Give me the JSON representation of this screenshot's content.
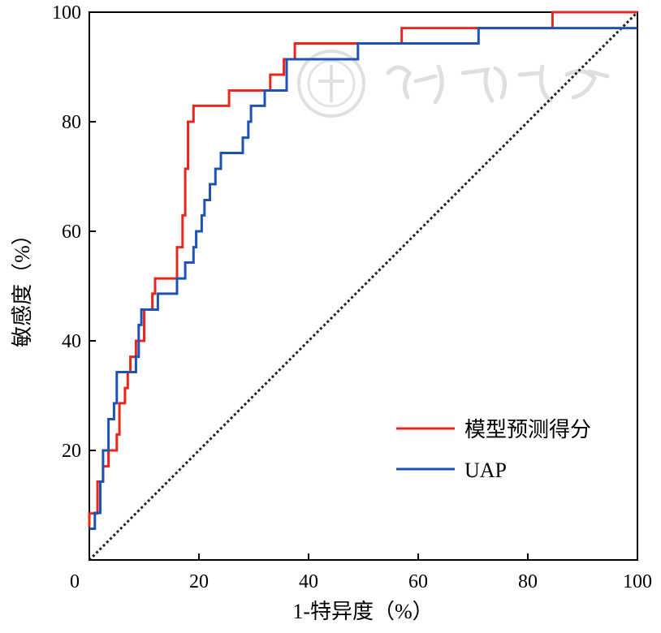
{
  "chart_data": {
    "type": "line",
    "title": "",
    "xlabel": "1-特异度（%）",
    "ylabel": "敏感度（%）",
    "xlim": [
      0,
      100
    ],
    "ylim": [
      0,
      100
    ],
    "x_ticks": [
      0,
      20,
      40,
      60,
      80,
      100
    ],
    "y_ticks": [
      20,
      40,
      60,
      80,
      100
    ],
    "legend_position": "bottom-right",
    "grid": false,
    "diagonal": {
      "name": "reference",
      "style": "dotted",
      "color": "#222222",
      "points": [
        [
          0,
          0
        ],
        [
          100,
          100
        ]
      ]
    },
    "series": [
      {
        "name": "模型预测得分",
        "color": "#e8281e",
        "step": true,
        "points": [
          [
            0,
            6
          ],
          [
            0,
            8.5
          ],
          [
            1.5,
            8.5
          ],
          [
            1.5,
            14.3
          ],
          [
            2.5,
            14.3
          ],
          [
            2.5,
            17.1
          ],
          [
            3.5,
            17.1
          ],
          [
            3.5,
            20
          ],
          [
            5,
            20
          ],
          [
            5,
            22.9
          ],
          [
            5.5,
            22.9
          ],
          [
            5.5,
            28.6
          ],
          [
            6.5,
            28.6
          ],
          [
            6.5,
            31.4
          ],
          [
            7,
            31.4
          ],
          [
            7,
            34.3
          ],
          [
            7.5,
            34.3
          ],
          [
            7.5,
            37.1
          ],
          [
            8.5,
            37.1
          ],
          [
            8.5,
            40
          ],
          [
            10,
            40
          ],
          [
            10,
            45.7
          ],
          [
            11.5,
            45.7
          ],
          [
            11.5,
            48.6
          ],
          [
            12,
            48.6
          ],
          [
            12,
            51.4
          ],
          [
            16,
            51.4
          ],
          [
            16,
            57.1
          ],
          [
            17,
            57.1
          ],
          [
            17,
            62.9
          ],
          [
            17.5,
            62.9
          ],
          [
            17.5,
            71.4
          ],
          [
            18,
            71.4
          ],
          [
            18,
            80
          ],
          [
            19,
            80
          ],
          [
            19,
            82.9
          ],
          [
            25.5,
            82.9
          ],
          [
            25.5,
            85.7
          ],
          [
            33,
            85.7
          ],
          [
            33,
            88.6
          ],
          [
            35.5,
            88.6
          ],
          [
            35.5,
            91.4
          ],
          [
            37.5,
            91.4
          ],
          [
            37.5,
            94.3
          ],
          [
            57,
            94.3
          ],
          [
            57,
            97.1
          ],
          [
            84.5,
            97.1
          ],
          [
            84.5,
            100
          ],
          [
            100,
            100
          ]
        ]
      },
      {
        "name": "UAP",
        "color": "#1f52b5",
        "step": true,
        "points": [
          [
            0,
            5.7
          ],
          [
            1,
            5.7
          ],
          [
            1,
            8.6
          ],
          [
            2,
            8.6
          ],
          [
            2,
            14.3
          ],
          [
            2.5,
            14.3
          ],
          [
            2.5,
            20
          ],
          [
            3.5,
            20
          ],
          [
            3.5,
            25.7
          ],
          [
            4.5,
            25.7
          ],
          [
            4.5,
            28.6
          ],
          [
            5,
            28.6
          ],
          [
            5,
            34.3
          ],
          [
            8.5,
            34.3
          ],
          [
            8.5,
            37.1
          ],
          [
            9,
            37.1
          ],
          [
            9,
            42.9
          ],
          [
            9.5,
            42.9
          ],
          [
            9.5,
            45.7
          ],
          [
            12.5,
            45.7
          ],
          [
            12.5,
            48.6
          ],
          [
            16,
            48.6
          ],
          [
            16,
            51.4
          ],
          [
            17.5,
            51.4
          ],
          [
            17.5,
            54.3
          ],
          [
            19,
            54.3
          ],
          [
            19,
            57.1
          ],
          [
            19.5,
            57.1
          ],
          [
            19.5,
            60
          ],
          [
            20.5,
            60
          ],
          [
            20.5,
            62.9
          ],
          [
            21,
            62.9
          ],
          [
            21,
            65.7
          ],
          [
            22,
            65.7
          ],
          [
            22,
            68.6
          ],
          [
            23,
            68.6
          ],
          [
            23,
            71.4
          ],
          [
            24,
            71.4
          ],
          [
            24,
            74.3
          ],
          [
            28,
            74.3
          ],
          [
            28,
            77.1
          ],
          [
            29,
            77.1
          ],
          [
            29,
            80
          ],
          [
            29.5,
            80
          ],
          [
            29.5,
            82.9
          ],
          [
            32,
            82.9
          ],
          [
            32,
            85.7
          ],
          [
            36,
            85.7
          ],
          [
            36,
            91.4
          ],
          [
            49,
            91.4
          ],
          [
            49,
            94.3
          ],
          [
            71,
            94.3
          ],
          [
            71,
            97.1
          ],
          [
            100,
            97.1
          ]
        ]
      }
    ]
  }
}
